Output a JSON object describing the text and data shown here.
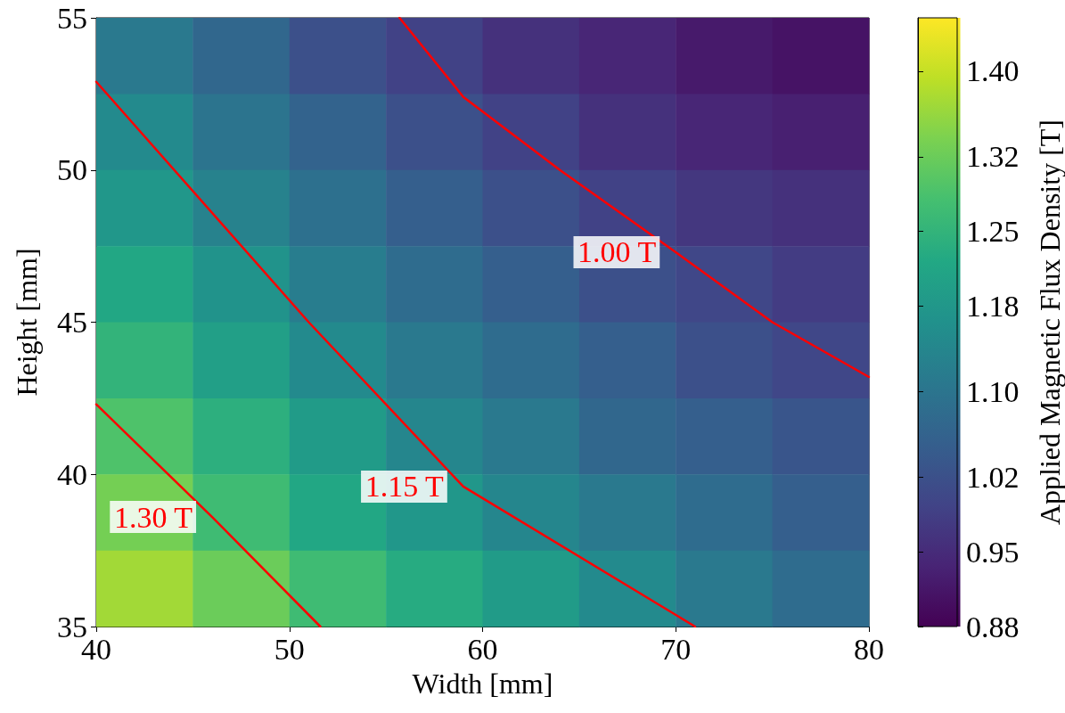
{
  "chart_data": {
    "type": "heatmap",
    "xlabel": "Width [mm]",
    "ylabel": "Height [mm]",
    "clabel": "Applied Magnetic Flux Density [T]",
    "xlim": [
      40,
      80
    ],
    "xticks": [
      40,
      50,
      60,
      70,
      80
    ],
    "ylim": [
      35,
      55
    ],
    "yticks": [
      35,
      40,
      45,
      50,
      55
    ],
    "clim": [
      0.88,
      1.45
    ],
    "cticks": [
      {
        "value": 0.88,
        "label": "0.88"
      },
      {
        "value": 0.95,
        "label": "0.95"
      },
      {
        "value": 1.02,
        "label": "1.02"
      },
      {
        "value": 1.1,
        "label": "1.10"
      },
      {
        "value": 1.18,
        "label": "1.18"
      },
      {
        "value": 1.25,
        "label": "1.25"
      },
      {
        "value": 1.32,
        "label": "1.32"
      },
      {
        "value": 1.4,
        "label": "1.40"
      }
    ],
    "cells": [
      [
        1.11,
        1.07,
        1.02,
        0.99,
        0.96,
        0.94,
        0.92,
        0.91
      ],
      [
        1.15,
        1.1,
        1.06,
        1.02,
        0.99,
        0.96,
        0.94,
        0.93
      ],
      [
        1.18,
        1.13,
        1.09,
        1.05,
        1.02,
        0.99,
        0.97,
        0.96
      ],
      [
        1.22,
        1.17,
        1.12,
        1.08,
        1.05,
        1.02,
        1.0,
        0.98
      ],
      [
        1.25,
        1.2,
        1.15,
        1.11,
        1.08,
        1.05,
        1.02,
        1.0
      ],
      [
        1.29,
        1.24,
        1.19,
        1.14,
        1.11,
        1.07,
        1.05,
        1.03
      ],
      [
        1.33,
        1.27,
        1.22,
        1.18,
        1.14,
        1.11,
        1.08,
        1.05
      ],
      [
        1.37,
        1.32,
        1.27,
        1.23,
        1.19,
        1.15,
        1.11,
        1.08
      ]
    ],
    "series": [
      {
        "type": "line",
        "name": "1.30 T",
        "color": "#ff0000",
        "x": [
          40,
          46,
          51.6
        ],
        "values": [
          42.3,
          38.6,
          35
        ]
      },
      {
        "type": "line",
        "name": "1.15 T",
        "color": "#ff0000",
        "x": [
          40,
          51,
          59,
          71
        ],
        "values": [
          52.9,
          45,
          39.6,
          35
        ]
      },
      {
        "type": "line",
        "name": "1.00 T",
        "color": "#ff0000",
        "x": [
          55.7,
          59,
          64,
          70,
          75,
          80
        ],
        "values": [
          55,
          52.4,
          50,
          47.3,
          45,
          43.2
        ]
      }
    ],
    "legend": false
  }
}
